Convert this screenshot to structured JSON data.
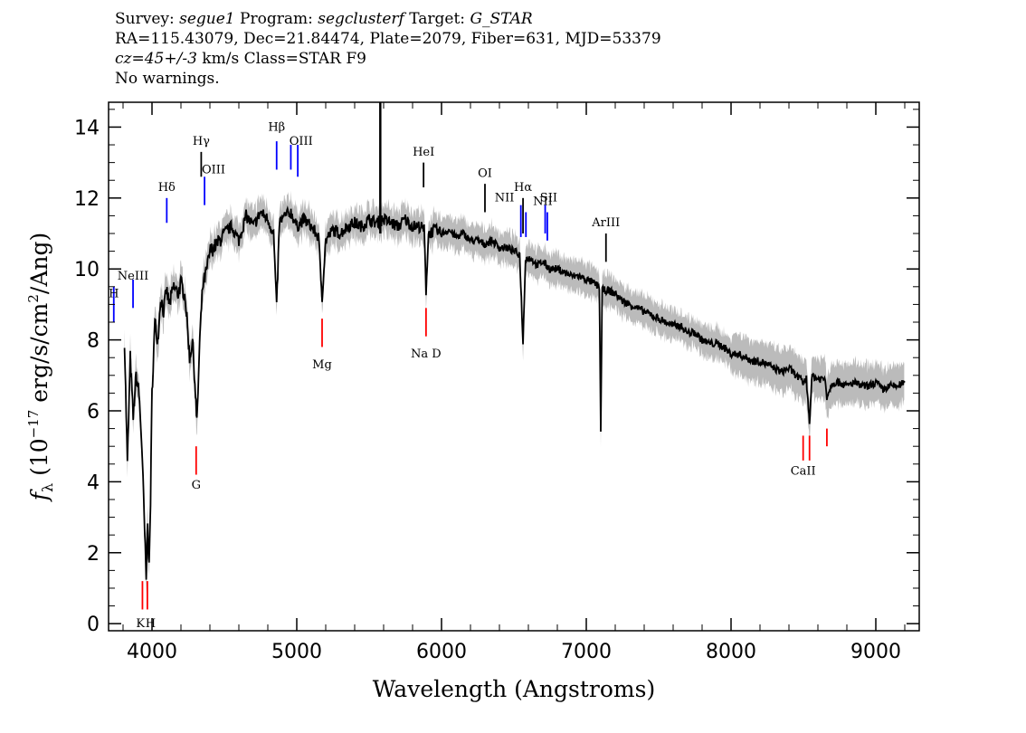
{
  "header": {
    "line1": [
      {
        "text": "Survey: ",
        "italic": false
      },
      {
        "text": "segue1",
        "italic": true
      },
      {
        "text": " Program: ",
        "italic": false
      },
      {
        "text": "segclusterf",
        "italic": true
      },
      {
        "text": " Target: ",
        "italic": false
      },
      {
        "text": "G_STAR",
        "italic": true
      }
    ],
    "line2": "RA=115.43079, Dec=21.84474, Plate=2079, Fiber=631, MJD=53379",
    "line3": [
      {
        "text": "cz=45+/-3",
        "italic": true
      },
      {
        "text": " km/s Class=STAR F9",
        "italic": false
      }
    ],
    "line4": "No warnings."
  },
  "chart_data": {
    "type": "line",
    "xlabel": "Wavelength (Angstroms)",
    "ylabel": "f_λ (10^-17 erg/s/cm^2/Ang)",
    "ylabel_parts": {
      "f": "f",
      "sub": "λ",
      "pre": " (10",
      "exp1": "−17",
      "mid": " erg/s/cm",
      "exp2": "2",
      "post": "/Ang)"
    },
    "xlim": [
      3700,
      9300
    ],
    "ylim": [
      -0.2,
      14.7
    ],
    "xticks": [
      4000,
      5000,
      6000,
      7000,
      8000,
      9000
    ],
    "yticks": [
      0,
      2,
      4,
      6,
      8,
      10,
      12,
      14
    ],
    "series": [
      {
        "x": [
          3810,
          3830,
          3850,
          3870,
          3890,
          3910,
          3930,
          3950,
          3960,
          3970,
          3980,
          3990,
          4000,
          4020,
          4040,
          4060,
          4080,
          4100,
          4120,
          4150,
          4180,
          4200,
          4230,
          4260,
          4280,
          4300,
          4310,
          4330,
          4350,
          4380,
          4400,
          4450,
          4500,
          4550,
          4600,
          4650,
          4700,
          4750,
          4800,
          4840,
          4861,
          4880,
          4920,
          4960,
          5000,
          5050,
          5100,
          5150,
          5175,
          5200,
          5250,
          5300,
          5350,
          5400,
          5450,
          5500,
          5550,
          5600,
          5650,
          5700,
          5750,
          5800,
          5850,
          5880,
          5893,
          5910,
          5950,
          6000,
          6050,
          6100,
          6150,
          6200,
          6250,
          6300,
          6350,
          6400,
          6450,
          6500,
          6540,
          6563,
          6580,
          6620,
          6660,
          6700,
          6750,
          6800,
          6850,
          6900,
          6950,
          7000,
          7050,
          7090,
          7100,
          7110,
          7150,
          7200,
          7250,
          7300,
          7350,
          7400,
          7450,
          7500,
          7550,
          7600,
          7650,
          7700,
          7750,
          7800,
          7850,
          7900,
          7950,
          8000,
          8050,
          8100,
          8150,
          8200,
          8250,
          8300,
          8350,
          8400,
          8450,
          8498,
          8520,
          8542,
          8560,
          8600,
          8650,
          8662,
          8700,
          8750,
          8800,
          8850,
          8900,
          8950,
          9000,
          9050,
          9100,
          9150,
          9200
        ],
        "y": [
          8.0,
          4.5,
          7.5,
          5.8,
          7.0,
          6.5,
          5.0,
          2.5,
          1.2,
          3.0,
          1.5,
          3.5,
          6.5,
          8.5,
          8.0,
          9.2,
          8.8,
          9.4,
          9.0,
          9.5,
          9.3,
          9.6,
          9.2,
          7.5,
          8.0,
          6.5,
          5.6,
          8.0,
          9.5,
          10.0,
          10.5,
          10.7,
          11.0,
          11.2,
          10.8,
          11.5,
          11.2,
          11.6,
          11.4,
          11.0,
          8.9,
          11.3,
          11.5,
          11.6,
          11.2,
          11.4,
          11.2,
          10.9,
          9.2,
          10.8,
          11.1,
          11.0,
          11.2,
          11.3,
          11.2,
          11.4,
          11.3,
          11.4,
          11.3,
          11.2,
          11.4,
          11.2,
          11.2,
          11.1,
          9.4,
          11.0,
          11.1,
          11.0,
          11.1,
          10.9,
          11.0,
          10.8,
          10.8,
          10.7,
          10.8,
          10.6,
          10.6,
          10.5,
          10.4,
          7.9,
          10.3,
          10.3,
          10.1,
          10.2,
          10.0,
          10.0,
          9.9,
          9.8,
          9.8,
          9.7,
          9.6,
          9.5,
          5.5,
          9.4,
          9.4,
          9.3,
          9.1,
          9.0,
          8.9,
          8.8,
          8.7,
          8.6,
          8.5,
          8.4,
          8.4,
          8.2,
          8.2,
          8.0,
          7.9,
          7.9,
          7.8,
          7.6,
          7.6,
          7.5,
          7.4,
          7.4,
          7.3,
          7.2,
          7.1,
          7.2,
          7.0,
          6.8,
          6.9,
          5.7,
          7.0,
          6.9,
          6.9,
          6.4,
          6.8,
          6.8,
          6.7,
          6.8,
          6.7,
          6.7,
          6.8,
          6.6,
          6.7,
          6.7,
          6.8
        ]
      }
    ],
    "spikes": [
      {
        "x": 5577,
        "y": 14.7
      }
    ],
    "lines": [
      {
        "label": "H",
        "x": 3736,
        "y1": 8.5,
        "y2": 9.5,
        "color": "#0000ff",
        "tx": 3736,
        "ty": 9.2
      },
      {
        "label": "NeIII",
        "x": 3869,
        "y1": 8.9,
        "y2": 9.7,
        "color": "#0000ff",
        "tx": 3869,
        "ty": 9.7
      },
      {
        "label": "Hδ",
        "x": 4102,
        "y1": 11.3,
        "y2": 12.0,
        "color": "#0000ff",
        "tx": 4102,
        "ty": 12.2
      },
      {
        "label": "Hγ",
        "x": 4340,
        "y1": 12.6,
        "y2": 13.3,
        "color": "#000000",
        "tx": 4340,
        "ty": 13.5
      },
      {
        "label": "OIII",
        "x": 4363,
        "y1": 11.8,
        "y2": 12.6,
        "color": "#0000ff",
        "tx": 4425,
        "ty": 12.7
      },
      {
        "label": "Hβ",
        "x": 4861,
        "y1": 12.8,
        "y2": 13.6,
        "color": "#0000ff",
        "tx": 4861,
        "ty": 13.9
      },
      {
        "label": "OIII",
        "x": 4959,
        "y1": 12.8,
        "y2": 13.5,
        "color": "#0000ff",
        "tx": 5030,
        "ty": 13.5
      },
      {
        "label": "OIII",
        "x": 5007,
        "y1": 12.6,
        "y2": 13.5,
        "color": "#0000ff",
        "tx": "",
        "ty": ""
      },
      {
        "label": "HeI",
        "x": 5876,
        "y1": 12.3,
        "y2": 13.0,
        "color": "#000000",
        "tx": 5876,
        "ty": 13.2
      },
      {
        "label": "OI",
        "x": 6300,
        "y1": 11.6,
        "y2": 12.4,
        "color": "#000000",
        "tx": 6300,
        "ty": 12.6
      },
      {
        "label": "NII",
        "x": 6548,
        "y1": 10.9,
        "y2": 11.8,
        "color": "#0000ff",
        "tx": 6435,
        "ty": 11.9
      },
      {
        "label": "Hα",
        "x": 6563,
        "y1": 11.0,
        "y2": 12.0,
        "color": "#000000",
        "tx": 6563,
        "ty": 12.2
      },
      {
        "label": "NII",
        "x": 6583,
        "y1": 10.9,
        "y2": 11.6,
        "color": "#0000ff",
        "tx": 6700,
        "ty": 11.8
      },
      {
        "label": "SII",
        "x": 6716,
        "y1": 11.0,
        "y2": 11.8,
        "color": "#0000ff",
        "tx": 6740,
        "ty": 11.9
      },
      {
        "label": "SII",
        "x": 6731,
        "y1": 10.8,
        "y2": 11.6,
        "color": "#0000ff",
        "tx": "",
        "ty": ""
      },
      {
        "label": "ArIII",
        "x": 7136,
        "y1": 10.2,
        "y2": 11.0,
        "color": "#000000",
        "tx": 7136,
        "ty": 11.2
      },
      {
        "label": "K",
        "x": 3934,
        "y1": 0.4,
        "y2": 1.2,
        "color": "#ff0000",
        "tx": 3920,
        "ty": -0.1
      },
      {
        "label": "H",
        "x": 3968,
        "y1": 0.4,
        "y2": 1.2,
        "color": "#ff0000",
        "tx": 3990,
        "ty": -0.1
      },
      {
        "label": "G",
        "x": 4305,
        "y1": 4.2,
        "y2": 5.0,
        "color": "#ff0000",
        "tx": 4305,
        "ty": 3.8
      },
      {
        "label": "Mg",
        "x": 5175,
        "y1": 7.8,
        "y2": 8.6,
        "color": "#ff0000",
        "tx": 5175,
        "ty": 7.2
      },
      {
        "label": "Na D",
        "x": 5893,
        "y1": 8.1,
        "y2": 8.9,
        "color": "#ff0000",
        "tx": 5893,
        "ty": 7.5
      },
      {
        "label": "CaII",
        "x": 8498,
        "y1": 4.6,
        "y2": 5.3,
        "color": "#ff0000",
        "tx": 8498,
        "ty": 4.2
      },
      {
        "label": "CaII",
        "x": 8542,
        "y1": 4.6,
        "y2": 5.3,
        "color": "#ff0000",
        "tx": "",
        "ty": ""
      },
      {
        "label": "CaII",
        "x": 8662,
        "y1": 5.0,
        "y2": 5.5,
        "color": "#ff0000",
        "tx": "",
        "ty": ""
      }
    ],
    "colors": {
      "spectrum": "#000000",
      "error_band": "#bbbbbb"
    }
  }
}
